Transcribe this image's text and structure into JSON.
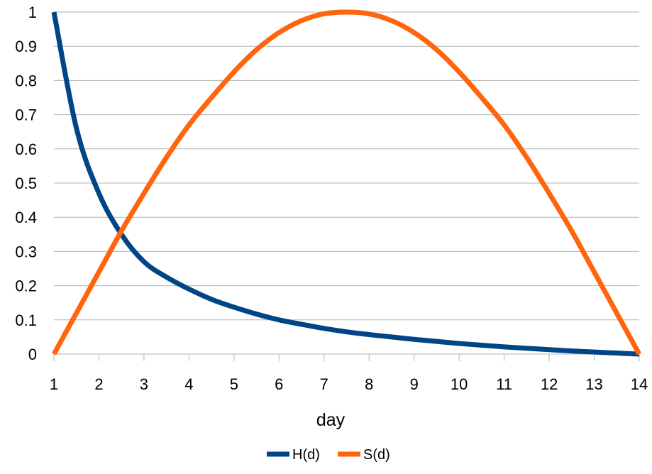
{
  "chart_data": {
    "type": "line",
    "title": "",
    "xlabel": "day",
    "ylabel": "",
    "xlim": [
      1,
      14
    ],
    "ylim": [
      0,
      1
    ],
    "x_ticks": [
      "1",
      "2",
      "3",
      "4",
      "5",
      "6",
      "7",
      "8",
      "9",
      "10",
      "11",
      "12",
      "13",
      "14"
    ],
    "y_ticks": [
      "0",
      "0.1",
      "0.2",
      "0.3",
      "0.4",
      "0.5",
      "0.6",
      "0.7",
      "0.8",
      "0.9",
      "1"
    ],
    "grid": "horizontal",
    "legend_position": "bottom-center",
    "x": [
      1,
      1.5,
      2,
      2.5,
      3,
      3.5,
      4,
      4.5,
      5,
      5.5,
      6,
      6.5,
      7,
      7.5,
      8,
      8.5,
      9,
      9.5,
      10,
      10.5,
      11,
      11.5,
      12,
      12.5,
      13,
      13.5,
      14
    ],
    "series": [
      {
        "name": "H(d)",
        "color": "#004586",
        "values": [
          1.0,
          0.66,
          0.47,
          0.35,
          0.27,
          0.225,
          0.19,
          0.16,
          0.137,
          0.117,
          0.1,
          0.087,
          0.075,
          0.065,
          0.057,
          0.05,
          0.043,
          0.037,
          0.031,
          0.026,
          0.021,
          0.017,
          0.013,
          0.009,
          0.006,
          0.003,
          0.0
        ]
      },
      {
        "name": "S(d)",
        "color": "#ff650d",
        "values": [
          0.0,
          0.12,
          0.24,
          0.36,
          0.47,
          0.575,
          0.67,
          0.75,
          0.825,
          0.89,
          0.94,
          0.975,
          0.995,
          1.0,
          0.995,
          0.975,
          0.94,
          0.89,
          0.825,
          0.75,
          0.67,
          0.575,
          0.47,
          0.36,
          0.24,
          0.12,
          0.0
        ]
      }
    ]
  }
}
